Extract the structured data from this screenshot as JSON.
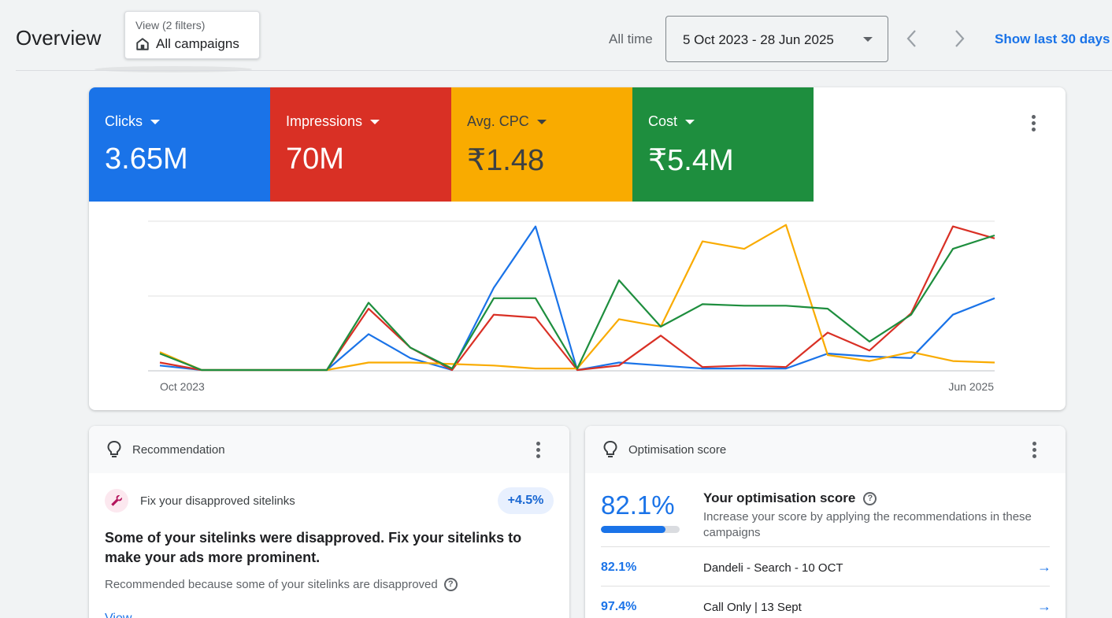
{
  "header": {
    "title": "Overview",
    "view_sub": "View (2 filters)",
    "view_main": "All campaigns",
    "all_time": "All time",
    "date_range": "5 Oct 2023 - 28 Jun 2025",
    "show_last": "Show last 30 days"
  },
  "metrics": [
    {
      "label": "Clicks",
      "value": "3.65M",
      "color": "#1a73e8"
    },
    {
      "label": "Impressions",
      "value": "70M",
      "color": "#d93025"
    },
    {
      "label": "Avg. CPC",
      "value": "₹1.48",
      "color": "#f9ab00"
    },
    {
      "label": "Cost",
      "value": "₹5.4M",
      "color": "#1e8e3e"
    }
  ],
  "chart_data": {
    "type": "line",
    "x_start_label": "Oct 2023",
    "x_end_label": "Jun 2025",
    "grid": true,
    "series": [
      {
        "name": "Clicks",
        "color": "#1a73e8",
        "values": [
          3,
          0,
          0,
          0,
          0,
          24,
          8,
          0,
          55,
          96,
          0,
          5,
          3,
          1,
          1,
          1,
          11,
          9,
          8,
          37,
          48
        ]
      },
      {
        "name": "Impressions",
        "color": "#d93025",
        "values": [
          5,
          0,
          0,
          0,
          0,
          41,
          15,
          0,
          37,
          35,
          0,
          3,
          23,
          2,
          3,
          2,
          25,
          13,
          38,
          96,
          88
        ]
      },
      {
        "name": "Avg. CPC",
        "color": "#f9ab00",
        "values": [
          12,
          0,
          0,
          0,
          0,
          5,
          5,
          4,
          3,
          1,
          1,
          34,
          29,
          86,
          81,
          97,
          10,
          6,
          12,
          6,
          5
        ]
      },
      {
        "name": "Cost",
        "color": "#1e8e3e",
        "values": [
          11,
          0,
          0,
          0,
          0,
          45,
          15,
          1,
          48,
          48,
          1,
          60,
          29,
          44,
          43,
          43,
          41,
          19,
          37,
          81,
          90
        ]
      }
    ]
  },
  "recommendation": {
    "title": "Recommendation",
    "item": "Fix your disapproved sitelinks",
    "badge": "+4.5%",
    "headline": "Some of your sitelinks were disapproved. Fix your sitelinks to make your ads more prominent.",
    "reason": "Recommended because some of your sitelinks are disapproved",
    "link": "View"
  },
  "optimisation": {
    "title": "Optimisation score",
    "score": "82.1%",
    "score_fraction": 0.821,
    "your_score": "Your optimisation score",
    "description": "Increase your score by applying the recommendations in these campaigns",
    "rows": [
      {
        "score": "82.1%",
        "name": "Dandeli - Search - 10 OCT"
      },
      {
        "score": "97.4%",
        "name": "Call Only | 13 Sept"
      }
    ]
  }
}
